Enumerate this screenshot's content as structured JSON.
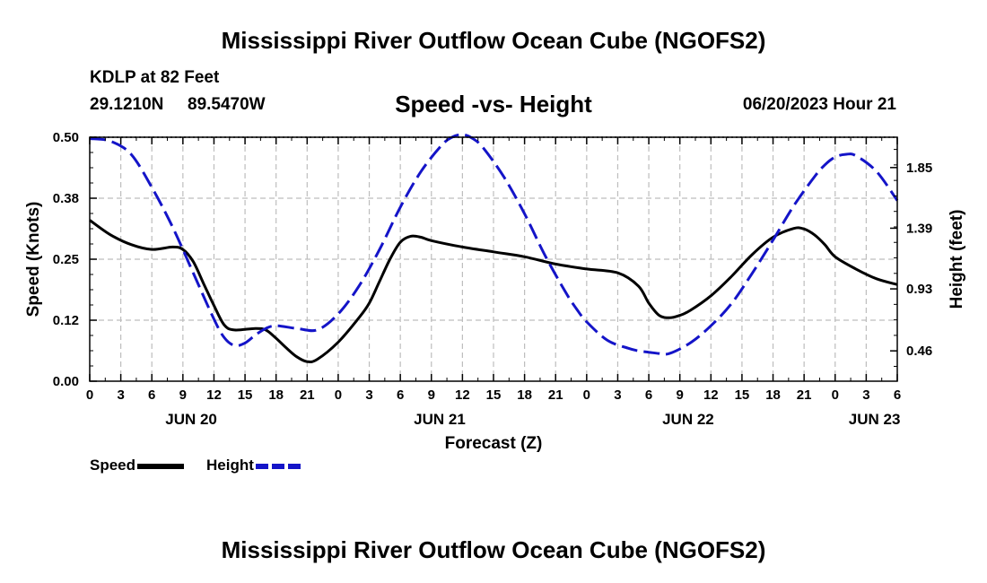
{
  "header": {
    "title": "Mississippi River Outflow Ocean Cube (NGOFS2)",
    "station": "KDLP at 82 Feet",
    "lat": "29.1210N",
    "lon": "89.5470W",
    "subtitle": "Speed -vs- Height",
    "datetime": "06/20/2023 Hour 21"
  },
  "footer": {
    "title": "Mississippi River Outflow Ocean Cube (NGOFS2)"
  },
  "legend": {
    "speed_label": "Speed",
    "height_label": "Height"
  },
  "colors": {
    "speed": "#000000",
    "height": "#1414c8",
    "grid": "#bdbdbd"
  },
  "chart_data": {
    "type": "line",
    "title": "Speed -vs- Height",
    "xlabel": "Forecast (Z)",
    "ylabel": "Speed (Knots)",
    "y2label": "Height (feet)",
    "x_unit": "hours from 00Z JUN 20",
    "xlim": [
      0,
      78
    ],
    "ylim": [
      0,
      0.5
    ],
    "y2lim": [
      0.23,
      2.08
    ],
    "grid": true,
    "legend_position": "bottom-left",
    "x_ticks": [
      0,
      3,
      6,
      9,
      12,
      15,
      18,
      21,
      24,
      27,
      30,
      33,
      36,
      39,
      42,
      45,
      48,
      51,
      54,
      57,
      60,
      63,
      66,
      69,
      72,
      75,
      78
    ],
    "x_tick_labels": [
      "0",
      "3",
      "6",
      "9",
      "12",
      "15",
      "18",
      "21",
      "0",
      "3",
      "6",
      "9",
      "12",
      "15",
      "18",
      "21",
      "0",
      "3",
      "6",
      "9",
      "12",
      "15",
      "18",
      "21",
      "0",
      "3",
      "6"
    ],
    "date_labels": [
      {
        "x": 9.8,
        "label": "JUN 20"
      },
      {
        "x": 33.8,
        "label": "JUN 21"
      },
      {
        "x": 57.8,
        "label": "JUN 22"
      },
      {
        "x": 75.8,
        "label": "JUN 23"
      }
    ],
    "y_ticks": [
      0.0,
      0.125,
      0.25,
      0.375,
      0.5
    ],
    "y_tick_labels": [
      "0.00",
      "0.12",
      "0.25",
      "0.38",
      "0.50"
    ],
    "y2_ticks": [
      0.46,
      0.93,
      1.39,
      1.85
    ],
    "y2_tick_labels": [
      "0.46",
      "0.93",
      "1.39",
      "1.85"
    ],
    "series": [
      {
        "name": "Speed",
        "axis": "left",
        "style": "solid",
        "x": [
          0,
          2,
          4,
          6,
          8,
          9,
          10,
          11,
          12,
          13,
          14,
          16,
          17,
          18,
          19,
          20,
          21,
          22,
          24,
          26,
          27,
          28,
          29,
          30,
          31,
          32,
          33,
          36,
          39,
          42,
          45,
          48,
          51,
          53,
          54,
          55,
          56,
          57,
          58,
          60,
          62,
          64,
          66,
          68,
          69,
          70,
          71,
          72,
          74,
          76,
          78
        ],
        "values": [
          0.33,
          0.3,
          0.28,
          0.27,
          0.275,
          0.27,
          0.245,
          0.2,
          0.155,
          0.115,
          0.105,
          0.108,
          0.105,
          0.088,
          0.068,
          0.05,
          0.04,
          0.045,
          0.08,
          0.13,
          0.16,
          0.205,
          0.25,
          0.285,
          0.297,
          0.295,
          0.288,
          0.275,
          0.265,
          0.255,
          0.24,
          0.23,
          0.222,
          0.195,
          0.16,
          0.135,
          0.13,
          0.135,
          0.145,
          0.175,
          0.215,
          0.26,
          0.295,
          0.313,
          0.312,
          0.3,
          0.28,
          0.255,
          0.23,
          0.21,
          0.198
        ]
      },
      {
        "name": "Height",
        "axis": "right",
        "style": "dashed",
        "x": [
          0,
          2,
          4,
          6,
          8,
          10,
          12,
          13,
          14,
          15,
          16,
          17,
          18,
          20,
          22,
          24,
          26,
          28,
          30,
          32,
          34,
          35,
          36,
          37,
          38,
          40,
          42,
          44,
          46,
          47,
          48,
          50,
          52,
          53,
          54,
          55,
          56,
          58,
          60,
          62,
          64,
          66,
          68,
          70,
          71,
          72,
          73,
          74,
          76,
          78
        ],
        "values": [
          2.07,
          2.05,
          1.95,
          1.7,
          1.4,
          1.05,
          0.7,
          0.56,
          0.5,
          0.52,
          0.58,
          0.63,
          0.65,
          0.63,
          0.62,
          0.74,
          0.95,
          1.23,
          1.55,
          1.82,
          2.02,
          2.08,
          2.1,
          2.07,
          2.0,
          1.78,
          1.5,
          1.18,
          0.9,
          0.78,
          0.68,
          0.54,
          0.48,
          0.46,
          0.45,
          0.44,
          0.44,
          0.52,
          0.65,
          0.82,
          1.05,
          1.3,
          1.56,
          1.78,
          1.87,
          1.93,
          1.95,
          1.94,
          1.82,
          1.6
        ]
      }
    ]
  }
}
